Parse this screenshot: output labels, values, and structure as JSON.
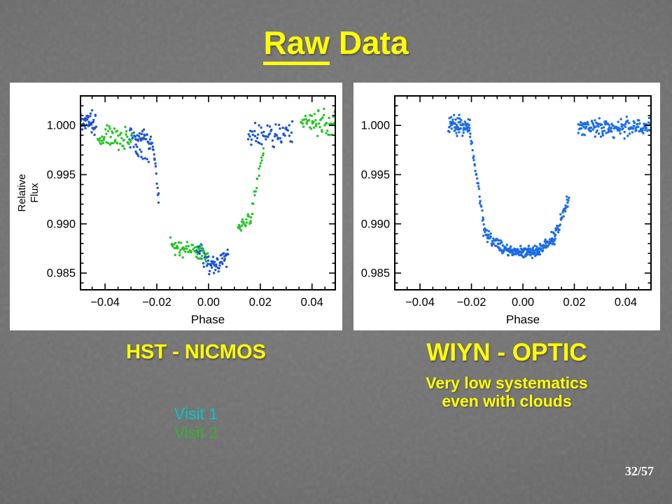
{
  "slide": {
    "title_underlined": "Raw",
    "title_rest": " Data",
    "page_number": "32/57"
  },
  "colors": {
    "accent_yellow": "#ffff00",
    "background": "#6f6f6f",
    "axis_black": "#000000"
  },
  "captions": {
    "left": "HST - NICMOS",
    "right": "WIYN - OPTIC",
    "right_sub_line1": "Very low systematics",
    "right_sub_line2": "even with clouds"
  },
  "legend": {
    "visit1": {
      "label": "Visit 1",
      "color": "#00c8c8"
    },
    "visit2": {
      "label": "Visit 2",
      "color": "#35b135"
    }
  },
  "chart_data": [
    {
      "type": "scatter",
      "title": "HST - NICMOS",
      "xlabel": "Phase",
      "ylabel": "Relative Flux",
      "xlim": [
        -0.0495,
        0.049
      ],
      "ylim": [
        0.9833,
        1.003
      ],
      "xticks": [
        -0.04,
        -0.02,
        0.0,
        0.02,
        0.04
      ],
      "yticks": [
        0.985,
        0.99,
        0.995,
        1.0
      ],
      "x_minor_step": 0.005,
      "y_minor_step": 0.001,
      "grid": false,
      "series": [
        {
          "name": "Visit 1",
          "color": "#1c55d4",
          "segments": [
            {
              "x0": -0.0495,
              "x1": -0.0435,
              "n": 46,
              "y0": 1.0006,
              "y1": 1.0002,
              "sy": 0.0009
            },
            {
              "x0": -0.0307,
              "x1": -0.0214,
              "n": 50,
              "y0": 0.9989,
              "y1": 0.9982,
              "sy": 0.0007
            },
            {
              "x0": -0.0285,
              "x1": -0.0235,
              "n": 10,
              "y0": 0.9972,
              "y1": 0.9966,
              "sy": 0.0004
            },
            {
              "x0": -0.0213,
              "x1": -0.0192,
              "n": 12,
              "y0": 0.9974,
              "y1": 0.9921,
              "sy": 0.0004,
              "curve": 1.3
            },
            {
              "x0": -0.0046,
              "x1": 0.0018,
              "n": 36,
              "y0": 0.9873,
              "y1": 0.9857,
              "sy": 0.0007
            },
            {
              "x0": 0.0018,
              "x1": 0.0076,
              "n": 34,
              "y0": 0.9857,
              "y1": 0.9868,
              "sy": 0.0007
            },
            {
              "x0": 0.0154,
              "x1": 0.0325,
              "n": 62,
              "y0": 0.9988,
              "y1": 0.9992,
              "sy": 0.0009
            }
          ]
        },
        {
          "name": "Visit 2",
          "color": "#23c523",
          "segments": [
            {
              "x0": -0.0428,
              "x1": -0.0295,
              "n": 56,
              "y0": 0.9986,
              "y1": 0.9988,
              "sy": 0.0009
            },
            {
              "x0": -0.0146,
              "x1": -0.0004,
              "n": 56,
              "y0": 0.9878,
              "y1": 0.9869,
              "sy": 0.0006
            },
            {
              "x0": 0.0114,
              "x1": 0.0163,
              "n": 22,
              "y0": 0.9896,
              "y1": 0.9903,
              "sy": 0.0006
            },
            {
              "x0": 0.0163,
              "x1": 0.0214,
              "n": 20,
              "y0": 0.9905,
              "y1": 0.9979,
              "sy": 0.0005,
              "curve": 0.9
            },
            {
              "x0": 0.0358,
              "x1": 0.0495,
              "n": 56,
              "y0": 1.0005,
              "y1": 1.0001,
              "sy": 0.0009
            }
          ]
        }
      ]
    },
    {
      "type": "scatter",
      "title": "WIYN - OPTIC",
      "xlabel": "Phase",
      "ylabel": "",
      "xlim": [
        -0.0498,
        0.0498
      ],
      "ylim": [
        0.9833,
        1.003
      ],
      "xticks": [
        -0.04,
        -0.02,
        0.0,
        0.02,
        0.04
      ],
      "yticks": [
        0.985,
        0.99,
        0.995,
        1.0
      ],
      "x_minor_step": 0.005,
      "y_minor_step": 0.001,
      "grid": false,
      "series": [
        {
          "name": "WIYN",
          "color": "#1b6ce8",
          "segments": [
            {
              "x0": -0.029,
              "x1": -0.0206,
              "n": 70,
              "y0": 1.0,
              "y1": 0.9998,
              "sy": 0.0007
            },
            {
              "x0": -0.0206,
              "x1": -0.0153,
              "n": 28,
              "y0": 0.999,
              "y1": 0.9903,
              "sy": 0.0004
            },
            {
              "x0": -0.0153,
              "x1": -0.0048,
              "n": 80,
              "y0": 0.9896,
              "y1": 0.9872,
              "sy": 0.0005,
              "curve": 0.55
            },
            {
              "x0": -0.0048,
              "x1": 0.0052,
              "n": 95,
              "y0": 0.9871,
              "y1": 0.9872,
              "sy": 0.0004
            },
            {
              "x0": 0.0052,
              "x1": 0.0126,
              "n": 60,
              "y0": 0.9873,
              "y1": 0.9888,
              "sy": 0.0005,
              "curve": 1.6
            },
            {
              "x0": 0.0126,
              "x1": 0.0178,
              "n": 32,
              "y0": 0.989,
              "y1": 0.9928,
              "sy": 0.0005,
              "curve": 1.2
            },
            {
              "x0": 0.0215,
              "x1": 0.0497,
              "n": 160,
              "y0": 0.9998,
              "y1": 0.9998,
              "sy": 0.0007
            }
          ]
        }
      ]
    }
  ]
}
